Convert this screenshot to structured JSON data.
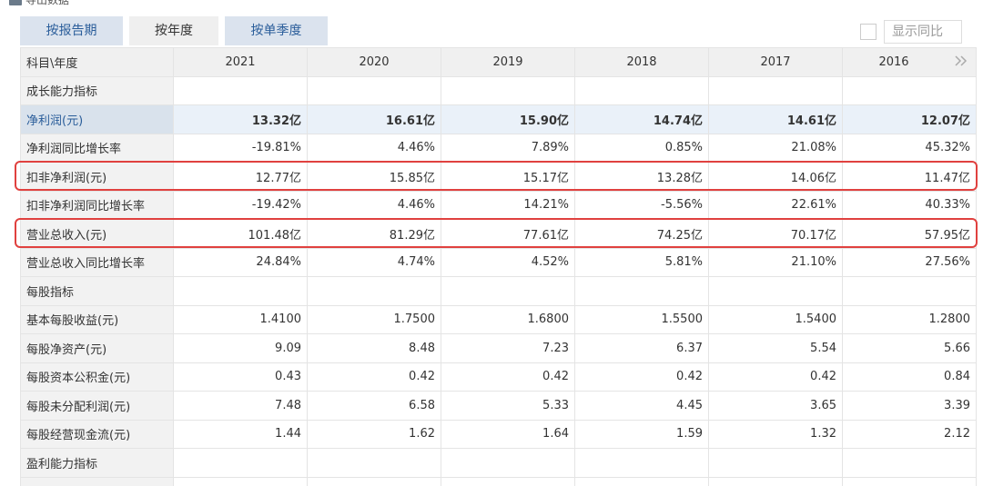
{
  "toolbar": {
    "export": "导出数据",
    "tabs": [
      "按报告期",
      "按年度",
      "按单季度"
    ],
    "toggle": "显示同比"
  },
  "table": {
    "header": [
      "科目\\年度",
      "2021",
      "2020",
      "2019",
      "2018",
      "2017",
      "2016"
    ],
    "rows": [
      [
        "成长能力指标"
      ],
      [
        "净利润(元)",
        "13.32亿",
        "16.61亿",
        "15.90亿",
        "14.74亿",
        "14.61亿",
        "12.07亿"
      ],
      [
        "净利润同比增长率",
        "-19.81%",
        "4.46%",
        "7.89%",
        "0.85%",
        "21.08%",
        "45.32%"
      ],
      [
        "扣非净利润(元)",
        "12.77亿",
        "15.85亿",
        "15.17亿",
        "13.28亿",
        "14.06亿",
        "11.47亿"
      ],
      [
        "扣非净利润同比增长率",
        "-19.42%",
        "4.46%",
        "14.21%",
        "-5.56%",
        "22.61%",
        "40.33%"
      ],
      [
        "营业总收入(元)",
        "101.48亿",
        "81.29亿",
        "77.61亿",
        "74.25亿",
        "70.17亿",
        "57.95亿"
      ],
      [
        "营业总收入同比增长率",
        "24.84%",
        "4.74%",
        "4.52%",
        "5.81%",
        "21.10%",
        "27.56%"
      ],
      [
        "每股指标"
      ],
      [
        "基本每股收益(元)",
        "1.4100",
        "1.7500",
        "1.6800",
        "1.5500",
        "1.5400",
        "1.2800"
      ],
      [
        "每股净资产(元)",
        "9.09",
        "8.48",
        "7.23",
        "6.37",
        "5.54",
        "5.66"
      ],
      [
        "每股资本公积金(元)",
        "0.43",
        "0.42",
        "0.42",
        "0.42",
        "0.42",
        "0.84"
      ],
      [
        "每股未分配利润(元)",
        "7.48",
        "6.58",
        "5.33",
        "4.45",
        "3.65",
        "3.39"
      ],
      [
        "每股经营现金流(元)",
        "1.44",
        "1.62",
        "1.64",
        "1.59",
        "1.32",
        "2.12"
      ],
      [
        "盈利能力指标"
      ]
    ]
  }
}
